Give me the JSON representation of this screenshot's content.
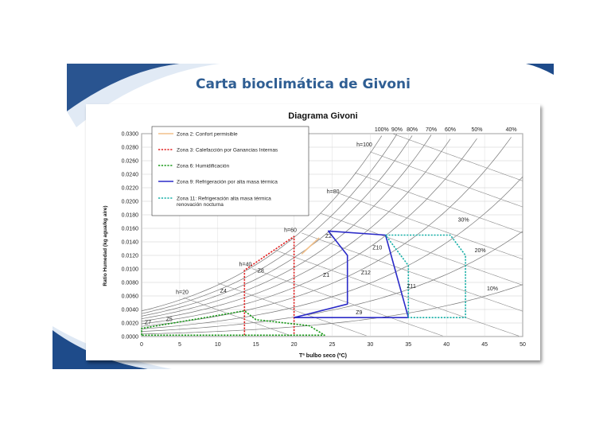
{
  "slide": {
    "title": "Carta bioclimática de Givoni",
    "colors": {
      "title": "#2f5e93",
      "accent": "#2d4f82"
    }
  },
  "chart_data": {
    "type": "line",
    "title": "Diagrama Givoni",
    "xlabel": "Tª bulbo seco (ºC)",
    "ylabel": "Ratio Humedad (kg agua/kg aire)",
    "xlim": [
      0,
      50
    ],
    "ylim": [
      0,
      0.03
    ],
    "x_ticks": [
      "0",
      "5",
      "10",
      "15",
      "20",
      "25",
      "30",
      "35",
      "40",
      "45",
      "50"
    ],
    "y_ticks": [
      "0.0000",
      "0.0020",
      "0.0040",
      "0.0060",
      "0.0080",
      "0.0100",
      "0.0120",
      "0.0140",
      "0.0160",
      "0.0180",
      "0.0200",
      "0.0220",
      "0.0240",
      "0.0260",
      "0.0280",
      "0.0300"
    ],
    "grid": true,
    "legend_position": "top-left",
    "rh_curves": [
      {
        "label": "100%",
        "rh": 1.0
      },
      {
        "label": "90%",
        "rh": 0.9
      },
      {
        "label": "80%",
        "rh": 0.8
      },
      {
        "label": "70%",
        "rh": 0.7
      },
      {
        "label": "60%",
        "rh": 0.6
      },
      {
        "label": "50%",
        "rh": 0.5
      },
      {
        "label": "40%",
        "rh": 0.4
      },
      {
        "label": "30%",
        "rh": 0.3
      },
      {
        "label": "20%",
        "rh": 0.2
      },
      {
        "label": "10%",
        "rh": 0.1
      }
    ],
    "enthalpy_labels": [
      {
        "label": "h=20",
        "x": 4.5,
        "y": 0.0063
      },
      {
        "label": "h=40",
        "x": 12.8,
        "y": 0.0104
      },
      {
        "label": "h=60",
        "x": 18.7,
        "y": 0.0155
      },
      {
        "label": "h=80",
        "x": 24.3,
        "y": 0.0212
      },
      {
        "label": "h=100",
        "x": 28.2,
        "y": 0.0281
      }
    ],
    "enthalpy_lines": [
      20,
      30,
      40,
      50,
      60,
      70,
      80,
      90,
      100,
      110
    ],
    "series": [
      {
        "name": "Zona 2: Confort permisible",
        "color": "#f2c08a",
        "dash": "solid",
        "points": [
          [
            21,
            0.0122
          ],
          [
            23.3,
            0.0146
          ]
        ]
      },
      {
        "name": "Zona 3: Calefacción por Ganancias Internas",
        "color": "#e02020",
        "dash": "dotted",
        "points": [
          [
            13.5,
            0.0002
          ],
          [
            13.5,
            0.0098
          ],
          [
            20,
            0.0148
          ],
          [
            20,
            0.0002
          ]
        ]
      },
      {
        "name": "Zona 6: Humidificación",
        "color": "#1a9a1a",
        "dash": "dotted",
        "points": [
          [
            0,
            0.0002
          ],
          [
            0,
            0.0012
          ],
          [
            13.5,
            0.0038
          ],
          [
            15,
            0.0025
          ],
          [
            22,
            0.0016
          ],
          [
            24,
            0.0002
          ],
          [
            0,
            0.0002
          ]
        ]
      },
      {
        "name": "Zona 9: Refrigeración por alta masa térmica",
        "color": "#2b2bc8",
        "dash": "solid",
        "points": [
          [
            20,
            0.0028
          ],
          [
            27,
            0.0048
          ],
          [
            27,
            0.012
          ],
          [
            24.5,
            0.0156
          ],
          [
            32,
            0.015
          ],
          [
            35,
            0.0028
          ],
          [
            20,
            0.0028
          ]
        ]
      },
      {
        "name": "Zona 11: Refrigeración alta masa térmica renovación nocturna",
        "color": "#1ab0a8",
        "dash": "dotted",
        "points": [
          [
            32,
            0.015
          ],
          [
            40.5,
            0.015
          ],
          [
            42.5,
            0.012
          ],
          [
            42.5,
            0.0028
          ],
          [
            35,
            0.0028
          ],
          [
            35,
            0.0105
          ],
          [
            32,
            0.015
          ]
        ]
      }
    ],
    "zone_labels": [
      {
        "label": "Z7",
        "x": 0.4,
        "y": 0.0018
      },
      {
        "label": "Z5",
        "x": 3.2,
        "y": 0.0023
      },
      {
        "label": "Z4",
        "x": 10.3,
        "y": 0.0065
      },
      {
        "label": "Z8",
        "x": 15.2,
        "y": 0.0095
      },
      {
        "label": "Z1",
        "x": 23.8,
        "y": 0.0088
      },
      {
        "label": "Z2",
        "x": 24.1,
        "y": 0.0146
      },
      {
        "label": "Z12",
        "x": 28.8,
        "y": 0.0092
      },
      {
        "label": "Z10",
        "x": 30.3,
        "y": 0.0129
      },
      {
        "label": "Z11",
        "x": 34.8,
        "y": 0.0072
      },
      {
        "label": "Z9",
        "x": 28.1,
        "y": 0.0033
      }
    ],
    "rh_side_labels": [
      {
        "label": "30%",
        "x": 41.5,
        "y": 0.017
      },
      {
        "label": "20%",
        "x": 43.7,
        "y": 0.0125
      },
      {
        "label": "10%",
        "x": 45.3,
        "y": 0.0068
      }
    ]
  }
}
